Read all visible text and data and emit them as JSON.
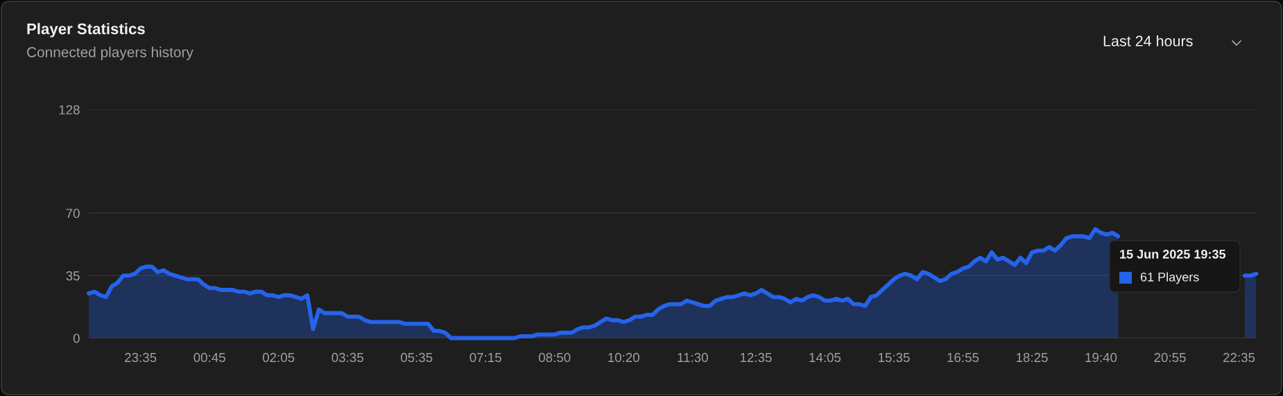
{
  "chart_data": {
    "type": "area",
    "title": "Player Statistics",
    "subtitle": "Connected players history",
    "annotations": [
      "Last 24 hours",
      "15 Jun 2025 19:35",
      "61 Players"
    ],
    "categories": [
      null,
      null,
      null,
      null,
      null,
      null,
      null,
      null,
      null,
      "23:35",
      null,
      null,
      null,
      null,
      null,
      null,
      null,
      null,
      null,
      null,
      null,
      "00:45",
      null,
      null,
      null,
      null,
      null,
      null,
      null,
      null,
      null,
      null,
      null,
      "02:05",
      null,
      null,
      null,
      null,
      null,
      null,
      null,
      null,
      null,
      null,
      null,
      "03:35",
      null,
      null,
      null,
      null,
      null,
      null,
      null,
      null,
      null,
      null,
      null,
      "05:35",
      null,
      null,
      null,
      null,
      null,
      null,
      null,
      null,
      null,
      null,
      null,
      "07:15",
      null,
      null,
      null,
      null,
      null,
      null,
      null,
      null,
      null,
      null,
      null,
      "08:50",
      null,
      null,
      null,
      null,
      null,
      null,
      null,
      null,
      null,
      null,
      null,
      "10:20",
      null,
      null,
      null,
      null,
      null,
      null,
      null,
      null,
      null,
      null,
      null,
      "11:30",
      null,
      null,
      null,
      null,
      null,
      null,
      null,
      null,
      null,
      null,
      "12:35",
      null,
      null,
      null,
      null,
      null,
      null,
      null,
      null,
      null,
      null,
      null,
      "14:05",
      null,
      null,
      null,
      null,
      null,
      null,
      null,
      null,
      null,
      null,
      null,
      "15:35",
      null,
      null,
      null,
      null,
      null,
      null,
      null,
      null,
      null,
      null,
      null,
      "16:55",
      null,
      null,
      null,
      null,
      null,
      null,
      null,
      null,
      null,
      null,
      null,
      "18:25",
      null,
      null,
      null,
      null,
      null,
      null,
      null,
      null,
      null,
      null,
      null,
      "19:40",
      null,
      null,
      null,
      null,
      null,
      null,
      null,
      null,
      null,
      null,
      null,
      "20:55",
      null,
      null,
      null,
      null,
      null,
      null,
      null,
      null,
      null,
      null,
      null,
      "22:35",
      null,
      null,
      null
    ],
    "series": [
      {
        "color": "#2563eb",
        "values": [
          25,
          26,
          24,
          23,
          29,
          31,
          35,
          35,
          36,
          39,
          40,
          40,
          37,
          38,
          36,
          35,
          34,
          33,
          33,
          33,
          30,
          28,
          28,
          27,
          27,
          27,
          26,
          26,
          25,
          26,
          26,
          24,
          24,
          23,
          24,
          24,
          23,
          22,
          24,
          5,
          16,
          14,
          14,
          14,
          14,
          12,
          12,
          12,
          10,
          9,
          9,
          9,
          9,
          9,
          9,
          8,
          8,
          8,
          8,
          8,
          4,
          4,
          3,
          0,
          0,
          0,
          0,
          0,
          0,
          0,
          0,
          0,
          0,
          0,
          0,
          1,
          1,
          1,
          2,
          2,
          2,
          2,
          3,
          3,
          3,
          5,
          6,
          6,
          7,
          9,
          11,
          10,
          10,
          9,
          10,
          12,
          12,
          13,
          13,
          16,
          18,
          19,
          19,
          19,
          21,
          20,
          19,
          18,
          18,
          21,
          22,
          23,
          23,
          24,
          25,
          24,
          25,
          27,
          25,
          23,
          23,
          22,
          20,
          22,
          21,
          23,
          24,
          23,
          21,
          21,
          22,
          21,
          22,
          19,
          19,
          18,
          23,
          24,
          27,
          30,
          33,
          35,
          36,
          35,
          33,
          37,
          36,
          34,
          32,
          33,
          36,
          37,
          39,
          40,
          43,
          45,
          43,
          48,
          44,
          45,
          43,
          41,
          45,
          42,
          48,
          49,
          49,
          51,
          49,
          52,
          56,
          57,
          57,
          57,
          56,
          61,
          59,
          58,
          59,
          57,
          null,
          null,
          null,
          null,
          null,
          null,
          null,
          null,
          null,
          null,
          null,
          null,
          null,
          null,
          null,
          null,
          null,
          null,
          null,
          null,
          null,
          35,
          35,
          36
        ]
      }
    ],
    "ylim": [
      0,
      128
    ],
    "yticks": [
      0,
      35,
      70,
      128
    ],
    "grid": "y",
    "line_style": "solid"
  }
}
